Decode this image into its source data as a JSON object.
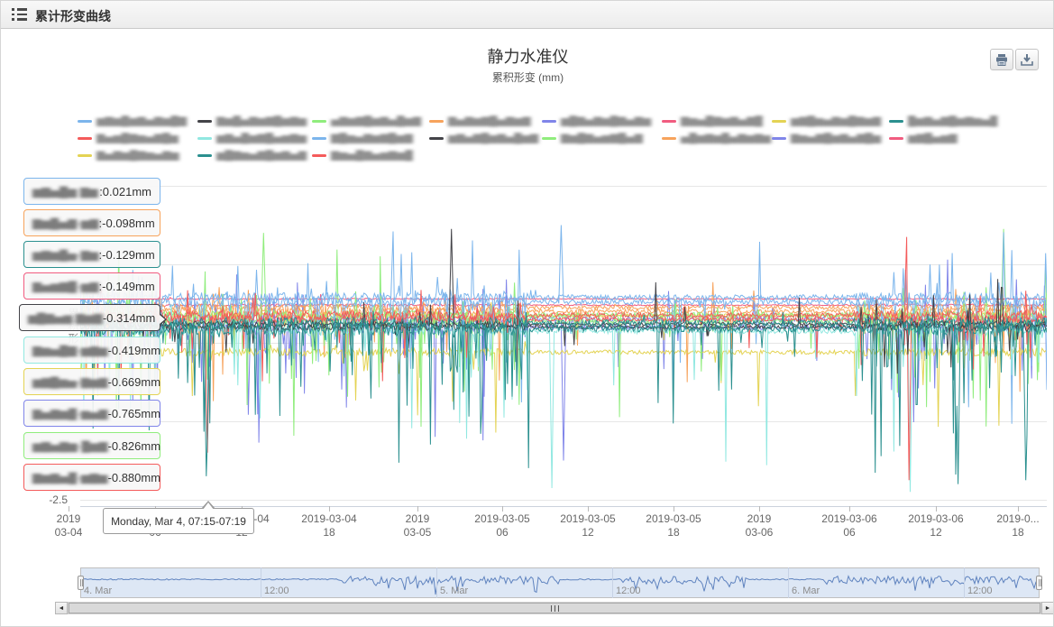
{
  "header": {
    "title": "累计形变曲线"
  },
  "icons": {
    "header": "list-icon",
    "print": "printer-icon",
    "download": "download-icon",
    "scroll_left": "scroll-left-arrow-icon",
    "scroll_right": "scroll-right-arrow-icon"
  },
  "scrollbar": {
    "left_arrow": "◄",
    "right_arrow": "►"
  },
  "chart": {
    "title": "静力水准仪",
    "subtitle": "累积形变 (mm)",
    "y_axis": {
      "visible_label": "-2.5",
      "title": "累积形变"
    },
    "x_axis": {
      "labels": [
        [
          "2019",
          "03-04"
        ],
        [
          "2019-03-04",
          "06"
        ],
        [
          "2019-03-04",
          "12"
        ],
        [
          "2019-03-04",
          "18"
        ],
        [
          "2019",
          "03-05"
        ],
        [
          "2019-03-05",
          "06"
        ],
        [
          "2019-03-05",
          "12"
        ],
        [
          "2019-03-05",
          "18"
        ],
        [
          "2019",
          "03-06"
        ],
        [
          "2019-03-06",
          "06"
        ],
        [
          "2019-03-06",
          "12"
        ],
        [
          "2019-0...",
          "18"
        ]
      ]
    },
    "legend": [
      {
        "mask": "▆▇▆█▆▇▅▇▆█▇",
        "color": "#7cb5ec"
      },
      {
        "mask": "▇▆█▅▇▆▇█▆▇▆",
        "color": "#434348"
      },
      {
        "mask": "▅▇▆▇█▆▇▅█▆▇",
        "color": "#90ed7d"
      },
      {
        "mask": "▇▅▇▆▇█▅▇▆▇",
        "color": "#f7a35c"
      },
      {
        "mask": "▆█▇▅▇▆█▇▅▇▆",
        "color": "#8085e9"
      },
      {
        "mask": "▇▆▅█▇▆▇▅▇█",
        "color": "#f15c80"
      },
      {
        "mask": "▆▇█▆▅▇▆█▇▆▇",
        "color": "#e4d354"
      },
      {
        "mask": "█▆▇▅▇█▆▇▆▅█",
        "color": "#2b908f"
      },
      {
        "mask": "▇▅▆█▇▆▅▇█▆",
        "color": "#f45b5b"
      },
      {
        "mask": "▆▇▅█▆▇█▅▆▇▆",
        "color": "#91e8e1"
      },
      {
        "mask": "▇█▆▅▇▆▇█▆▇",
        "color": "#7cb5ec"
      },
      {
        "mask": "▆▇▅▇█▆▇▅█▆▇",
        "color": "#434348"
      },
      {
        "mask": "▇▆█▇▅▆▇█▅▇",
        "color": "#90ed7d"
      },
      {
        "mask": "▅█▆▇▆█▅▇▆▇▆",
        "color": "#f7a35c"
      },
      {
        "mask": "▇▆▅▇█▆▇▅▇█▆",
        "color": "#8085e9"
      },
      {
        "mask": "▆▇█▅▆▇",
        "color": "#f15c80"
      },
      {
        "mask": "▇▅▇▆█▇▆▅▇▆",
        "color": "#e4d354"
      },
      {
        "mask": "▆█▇▆▅▇█▆▇▅▇",
        "color": "#2b908f"
      },
      {
        "mask": "▇▆▅█▇▅▆▇▆█",
        "color": "#f45b5b"
      }
    ],
    "tooltip": {
      "header": "Monday, Mar 4, 07:15-07:19",
      "rows": [
        {
          "mask": "▆▇▅█▆ ▇▆",
          "color": "#7cb5ec",
          "value": ":0.021mm"
        },
        {
          "mask": "▇▆█▅▇-▆▇",
          "color": "#f7a35c",
          "value": ":-0.098mm"
        },
        {
          "mask": "▆▇▆█▅-▇▆",
          "color": "#2b908f",
          "value": ":-0.129mm"
        },
        {
          "mask": "▇▅▆▇█-▆▇",
          "color": "#f15c80",
          "value": ":-0.149mm"
        },
        {
          "mask": "▆█▇▅▆.▇▆▇",
          "color": "#434348",
          "value": "-0.314mm",
          "anchor": true
        },
        {
          "mask": "▇▆▅█▇-▆▇▆",
          "color": "#91e8e1",
          "value": "-0.419mm"
        },
        {
          "mask": "▆▇█▆▅-▇▆▇",
          "color": "#e4d354",
          "value": "-0.669mm"
        },
        {
          "mask": "▇▅▇▆█-▆▅▇",
          "color": "#8085e9",
          "value": "-0.765mm"
        },
        {
          "mask": "▆▇▅▇▆-█▆▇",
          "color": "#90ed7d",
          "value": "-0.826mm"
        },
        {
          "mask": "▇▆▇▅█-▆▇▆",
          "color": "#f45b5b",
          "value": "-0.880mm"
        }
      ]
    },
    "navigator_labels": [
      "4. Mar",
      "12:00",
      "5. Mar",
      "12:00",
      "6. Mar",
      "12:00"
    ]
  },
  "chart_data": {
    "type": "line",
    "title": "静力水准仪",
    "subtitle": "累积形变 (mm)",
    "x_range": [
      "2019-03-04 00:00",
      "2019-03-06 21:00"
    ],
    "x_tick_labels": [
      "2019-03-04 00",
      "2019-03-04 06",
      "2019-03-04 12",
      "2019-03-04 18",
      "2019-03-05 00",
      "2019-03-05 06",
      "2019-03-05 12",
      "2019-03-05 18",
      "2019-03-06 00",
      "2019-03-06 06",
      "2019-03-06 12",
      "2019-03-06 18"
    ],
    "ylim": [
      -2.5,
      1.5
    ],
    "y_ticks": [
      -2.5,
      -1.5,
      -0.5,
      0.5,
      1.5
    ],
    "ylabel": "累积形变 (mm)",
    "grid": "horizontal",
    "legend_position": "top",
    "tooltip_sample": {
      "time": "Monday, Mar 4, 07:15-07:19",
      "values_mm": [
        0.021,
        -0.098,
        -0.129,
        -0.149,
        -0.314,
        -0.419,
        -0.669,
        -0.765,
        -0.826,
        -0.88
      ],
      "colors": [
        "#7cb5ec",
        "#f7a35c",
        "#2b908f",
        "#f15c80",
        "#434348",
        "#91e8e1",
        "#e4d354",
        "#8085e9",
        "#90ed7d",
        "#f45b5b"
      ]
    },
    "calm_regions": [
      [
        0.463,
        0.594
      ],
      [
        0.705,
        0.8
      ]
    ],
    "mild_regions": [
      [
        0.594,
        0.705
      ]
    ],
    "draw_order": [
      5,
      15,
      4,
      14,
      3,
      13,
      6,
      16,
      2,
      12,
      10,
      0,
      9,
      18,
      8,
      1,
      11,
      17,
      7
    ],
    "events": [
      {
        "s": 9,
        "f": 0.488,
        "v": -2.35
      },
      {
        "s": 7,
        "f": 0.131,
        "v": -2.2
      },
      {
        "s": 8,
        "f": 0.8545,
        "v": 0.85
      },
      {
        "s": 8,
        "f": 0.857,
        "v": -2.25
      },
      {
        "s": 9,
        "f": 0.859,
        "v": -2.4
      },
      {
        "s": 7,
        "f": 0.908,
        "v": -2.3
      },
      {
        "s": 1,
        "f": 0.384,
        "v": 0.95
      },
      {
        "s": 0,
        "f": 0.497,
        "v": 1.0
      },
      {
        "s": 0,
        "f": 0.324,
        "v": 0.92
      },
      {
        "s": 2,
        "f": 0.19,
        "v": 0.9
      },
      {
        "s": 4,
        "f": 0.5,
        "v": -2.0
      },
      {
        "s": 18,
        "f": 0.132,
        "v": -1.9
      },
      {
        "s": 17,
        "f": 0.978,
        "v": -2.25
      },
      {
        "s": 2,
        "f": 0.955,
        "v": 0.95
      }
    ],
    "series": [
      {
        "name": "(redacted)",
        "color": "#7cb5ec",
        "base": 0.02,
        "jitter": 0.12,
        "dp": 0.1,
        "dm": 1.6,
        "up": 0.06,
        "um": 1.0,
        "seed": 11
      },
      {
        "name": "(redacted)",
        "color": "#434348",
        "base": -0.3,
        "jitter": 0.08,
        "dp": 0.03,
        "dm": 0.8,
        "up": 0.03,
        "um": 0.9,
        "seed": 22
      },
      {
        "name": "(redacted)",
        "color": "#90ed7d",
        "base": -0.15,
        "jitter": 0.12,
        "dp": 0.09,
        "dm": 1.9,
        "up": 0.05,
        "um": 1.0,
        "seed": 33
      },
      {
        "name": "(redacted)",
        "color": "#f7a35c",
        "base": -0.1,
        "jitter": 0.1,
        "dp": 0.06,
        "dm": 1.2,
        "up": 0.02,
        "um": 0.5,
        "seed": 44
      },
      {
        "name": "(redacted)",
        "color": "#8085e9",
        "base": -0.2,
        "jitter": 0.12,
        "dp": 0.1,
        "dm": 1.8,
        "up": 0.05,
        "um": 0.9,
        "seed": 55
      },
      {
        "name": "(redacted)",
        "color": "#f15c80",
        "base": 0.06,
        "jitter": 0.015,
        "dp": 0.002,
        "dm": 0.3,
        "up": 0.002,
        "um": 0.2,
        "seed": 66
      },
      {
        "name": "(redacted)",
        "color": "#e4d354",
        "base": -0.62,
        "jitter": 0.1,
        "dp": 0.05,
        "dm": 1.2,
        "up": 0.01,
        "um": 0.3,
        "seed": 77
      },
      {
        "name": "(redacted)",
        "color": "#2b908f",
        "base": -0.25,
        "jitter": 0.15,
        "dp": 0.16,
        "dm": 2.1,
        "up": 0.02,
        "um": 0.4,
        "seed": 88
      },
      {
        "name": "(redacted)",
        "color": "#f45b5b",
        "base": -0.15,
        "jitter": 0.12,
        "dp": 0.07,
        "dm": 1.0,
        "up": 0.02,
        "um": 0.5,
        "seed": 99
      },
      {
        "name": "(redacted)",
        "color": "#91e8e1",
        "base": -0.35,
        "jitter": 0.12,
        "dp": 0.07,
        "dm": 2.0,
        "up": 0.02,
        "um": 0.5,
        "seed": 110
      },
      {
        "name": "(redacted)",
        "color": "#7cb5ec",
        "base": 0.08,
        "jitter": 0.12,
        "dp": 0.09,
        "dm": 1.5,
        "up": 0.06,
        "um": 0.9,
        "seed": 121
      },
      {
        "name": "(redacted)",
        "color": "#434348",
        "base": -0.26,
        "jitter": 0.07,
        "dp": 0.03,
        "dm": 0.7,
        "up": 0.02,
        "um": 0.7,
        "seed": 132
      },
      {
        "name": "(redacted)",
        "color": "#90ed7d",
        "base": -0.22,
        "jitter": 0.11,
        "dp": 0.08,
        "dm": 1.8,
        "up": 0.04,
        "um": 0.9,
        "seed": 143
      },
      {
        "name": "(redacted)",
        "color": "#f7a35c",
        "base": -0.05,
        "jitter": 0.09,
        "dp": 0.05,
        "dm": 1.1,
        "up": 0.02,
        "um": 0.4,
        "seed": 154
      },
      {
        "name": "(redacted)",
        "color": "#8085e9",
        "base": -0.3,
        "jitter": 0.12,
        "dp": 0.1,
        "dm": 1.9,
        "up": 0.04,
        "um": 0.8,
        "seed": 165
      },
      {
        "name": "(redacted)",
        "color": "#f15c80",
        "base": -0.02,
        "jitter": 0.03,
        "dp": 0.01,
        "dm": 0.5,
        "up": 0.005,
        "um": 0.2,
        "seed": 176
      },
      {
        "name": "(redacted)",
        "color": "#e4d354",
        "base": -0.15,
        "jitter": 0.08,
        "dp": 0.03,
        "dm": 0.8,
        "up": 0.01,
        "um": 0.3,
        "seed": 187
      },
      {
        "name": "(redacted)",
        "color": "#2b908f",
        "base": -0.32,
        "jitter": 0.15,
        "dp": 0.15,
        "dm": 2.0,
        "up": 0.02,
        "um": 0.4,
        "seed": 198
      },
      {
        "name": "(redacted)",
        "color": "#f45b5b",
        "base": -0.2,
        "jitter": 0.1,
        "dp": 0.06,
        "dm": 1.1,
        "up": 0.02,
        "um": 0.5,
        "seed": 209
      }
    ],
    "navigator": {
      "labels": [
        "4. Mar",
        "12:00",
        "5. Mar",
        "12:00",
        "6. Mar",
        "12:00"
      ],
      "selected_range": "full",
      "line_color": "#5f83bf",
      "quiet_regions": [
        [
          0.0,
          0.27
        ],
        [
          0.5,
          0.565
        ],
        [
          0.695,
          0.775
        ]
      ]
    }
  }
}
